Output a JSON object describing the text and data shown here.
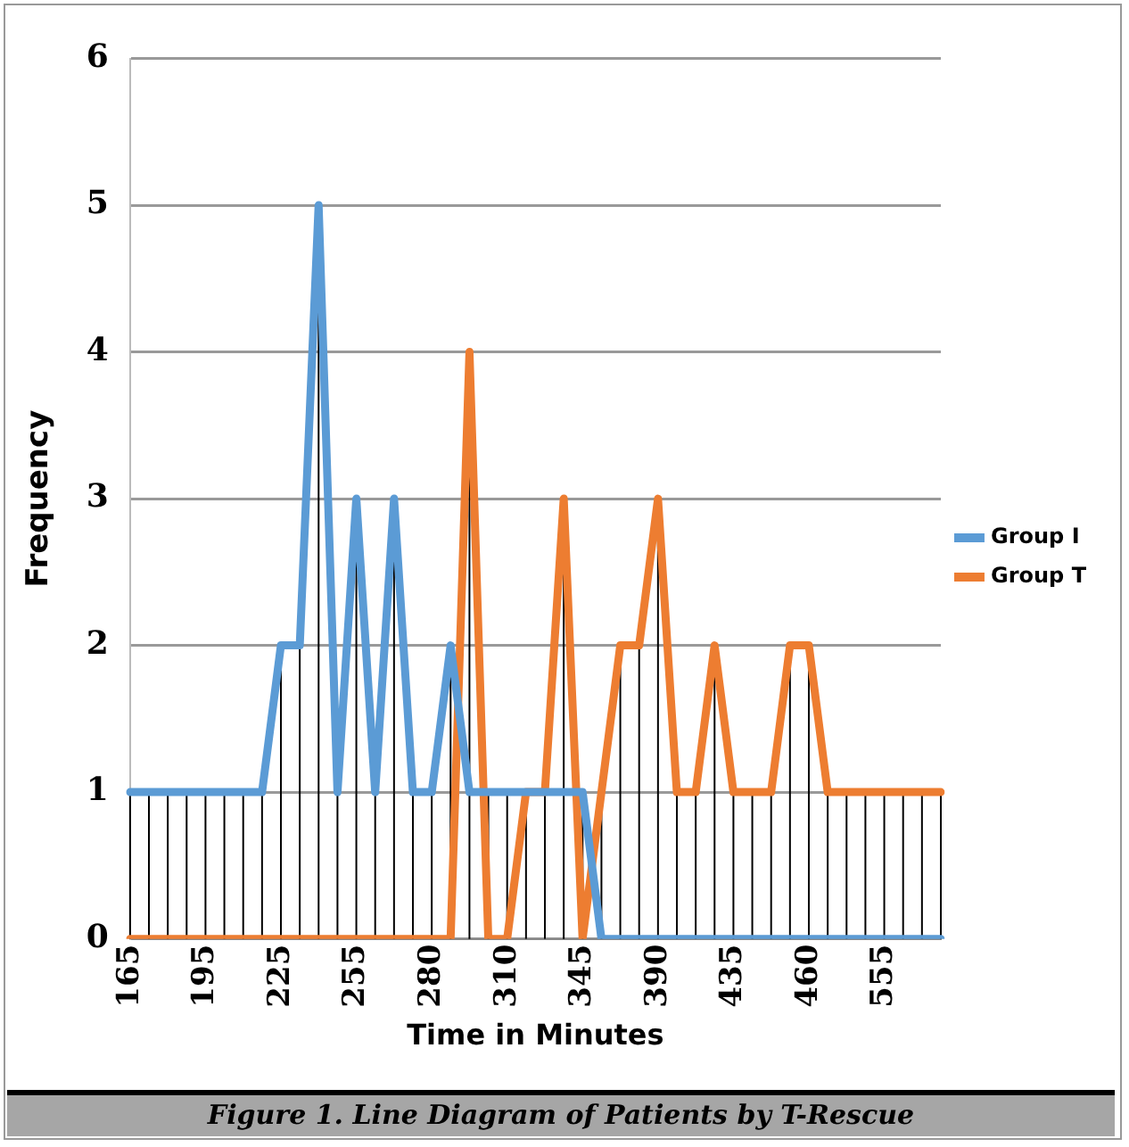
{
  "chart_data": {
    "type": "line",
    "xlabel": "Time in Minutes",
    "ylabel": "Frequency",
    "categories": [
      "165",
      null,
      null,
      null,
      "195",
      null,
      null,
      null,
      "225",
      null,
      null,
      null,
      "255",
      null,
      null,
      null,
      "280",
      null,
      null,
      null,
      "310",
      null,
      null,
      null,
      "345",
      null,
      null,
      null,
      "390",
      null,
      null,
      null,
      "435",
      null,
      null,
      null,
      "460",
      null,
      null,
      null,
      "555",
      null,
      null,
      null
    ],
    "series": [
      {
        "name": "Group I",
        "color": "#5b9bd5",
        "values": [
          1,
          1,
          1,
          1,
          1,
          1,
          1,
          1,
          2,
          2,
          5,
          1,
          3,
          1,
          3,
          1,
          1,
          2,
          1,
          1,
          1,
          1,
          1,
          1,
          1,
          0,
          0,
          0,
          0,
          0,
          0,
          0,
          0,
          0,
          0,
          0,
          0,
          0,
          0,
          0,
          0,
          0,
          0,
          0
        ],
        "errors": [
          [
            0,
            1
          ],
          [
            0,
            1
          ],
          [
            0,
            1
          ],
          [
            0,
            1
          ],
          [
            0,
            1
          ],
          [
            0,
            1
          ],
          [
            0,
            1
          ],
          [
            0,
            1
          ],
          [
            0,
            2
          ],
          [
            0,
            2
          ],
          [
            0,
            5
          ],
          [
            0,
            1
          ],
          [
            0,
            3
          ],
          [
            0,
            1
          ],
          [
            0,
            3
          ],
          [
            0,
            1
          ],
          [
            0,
            1
          ],
          [
            0,
            2
          ],
          null,
          [
            0,
            1
          ],
          [
            0,
            1
          ],
          [
            0,
            1
          ],
          [
            0,
            1
          ],
          null,
          [
            0,
            1
          ],
          null,
          null,
          null,
          null,
          null,
          null,
          null,
          null,
          null,
          null,
          null,
          null,
          null,
          null,
          null,
          null,
          null,
          null,
          null
        ]
      },
      {
        "name": "Group T",
        "color": "#ed7d31",
        "values": [
          0,
          0,
          0,
          0,
          0,
          0,
          0,
          0,
          0,
          0,
          0,
          0,
          0,
          0,
          0,
          0,
          0,
          0,
          4,
          0,
          0,
          1,
          1,
          3,
          0,
          1,
          2,
          2,
          3,
          1,
          1,
          2,
          1,
          1,
          1,
          2,
          2,
          1,
          1,
          1,
          1,
          1,
          1,
          1
        ],
        "errors": [
          null,
          null,
          null,
          null,
          null,
          null,
          null,
          null,
          null,
          null,
          null,
          null,
          null,
          null,
          null,
          null,
          null,
          null,
          [
            0,
            4
          ],
          null,
          null,
          null,
          null,
          [
            0,
            3
          ],
          null,
          [
            0,
            1
          ],
          [
            0,
            2
          ],
          [
            0,
            2
          ],
          [
            0,
            3
          ],
          [
            0,
            1
          ],
          [
            0,
            1
          ],
          [
            0,
            2
          ],
          [
            0,
            1
          ],
          [
            0,
            1
          ],
          [
            0,
            1
          ],
          [
            0,
            2
          ],
          [
            0,
            2
          ],
          [
            0,
            1
          ],
          [
            0,
            1
          ],
          [
            0,
            1
          ],
          [
            0,
            1
          ],
          [
            0,
            1
          ],
          [
            0,
            1
          ],
          [
            0,
            1
          ]
        ]
      }
    ],
    "ylim": [
      0,
      6
    ],
    "yticks": [
      0,
      1,
      2,
      3,
      4,
      5,
      6
    ],
    "grid": "y",
    "legend": "right",
    "marker": "none",
    "line_style": "solid",
    "annotations": [
      "Figure 1. Line Diagram of Patients by T-Rescue"
    ]
  }
}
